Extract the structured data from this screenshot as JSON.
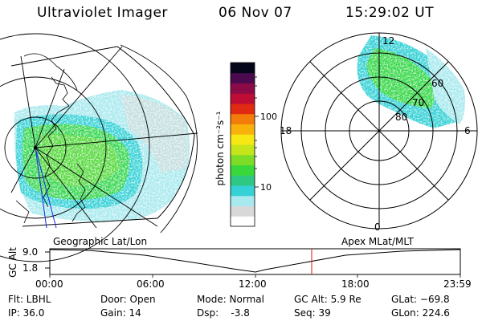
{
  "header": {
    "instrument": "Ultraviolet Imager",
    "date": "06 Nov 07",
    "time": "15:29:02 UT"
  },
  "map": {
    "label": "Geographic Lat/Lon"
  },
  "polar": {
    "label": "Apex MLat/MLT",
    "mlt_labels": {
      "top": "12",
      "left": "18",
      "right": "6",
      "bottom": "0"
    },
    "lat_labels": [
      "60",
      "70",
      "80"
    ]
  },
  "colorbar": {
    "unit": "photon cm⁻²s⁻¹",
    "ticks": [
      "100",
      "10"
    ],
    "colors": [
      "#ffffff",
      "#d8d8d8",
      "#a7e9ee",
      "#35d1d6",
      "#2fc882",
      "#38d83b",
      "#7ddc25",
      "#c5e51a",
      "#f6e813",
      "#f9b20c",
      "#f47c09",
      "#e02a12",
      "#bd0d35",
      "#8b0b49",
      "#4b0a4d",
      "#06061a"
    ]
  },
  "timeline": {
    "ylabel": "GC Alt",
    "yticks": [
      "9.0",
      "1.8"
    ],
    "xticks": [
      "00:00",
      "06:00",
      "12:00",
      "18:00",
      "23:59"
    ],
    "current_marker": "15:29"
  },
  "info": {
    "filter": "Flt: LBHL",
    "ip": "IP: 36.0",
    "door": "Door: Open",
    "gain": "Gain: 14",
    "mode": "Mode: Normal",
    "dsp": "Dsp:    -3.8",
    "gc_alt": "GC Alt: 5.9 Re",
    "seq": "Seq: 39",
    "glat": "GLat: −69.8",
    "glon": "GLon: 224.6"
  }
}
